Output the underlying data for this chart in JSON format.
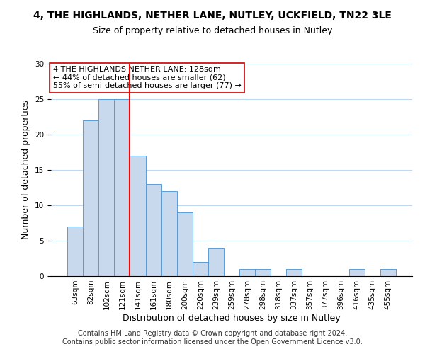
{
  "title": "4, THE HIGHLANDS, NETHER LANE, NUTLEY, UCKFIELD, TN22 3LE",
  "subtitle": "Size of property relative to detached houses in Nutley",
  "xlabel": "Distribution of detached houses by size in Nutley",
  "ylabel": "Number of detached properties",
  "categories": [
    "63sqm",
    "82sqm",
    "102sqm",
    "121sqm",
    "141sqm",
    "161sqm",
    "180sqm",
    "200sqm",
    "220sqm",
    "239sqm",
    "259sqm",
    "278sqm",
    "298sqm",
    "318sqm",
    "337sqm",
    "357sqm",
    "377sqm",
    "396sqm",
    "416sqm",
    "435sqm",
    "455sqm"
  ],
  "values": [
    7,
    22,
    25,
    25,
    17,
    13,
    12,
    9,
    2,
    4,
    0,
    1,
    1,
    0,
    1,
    0,
    0,
    0,
    1,
    0,
    1
  ],
  "bar_color": "#c8d9ed",
  "bar_edge_color": "#5b9bd5",
  "vline_x_index": 3,
  "vline_color": "red",
  "ylim": [
    0,
    30
  ],
  "annotation_text": "4 THE HIGHLANDS NETHER LANE: 128sqm\n← 44% of detached houses are smaller (62)\n55% of semi-detached houses are larger (77) →",
  "annotation_box_color": "white",
  "annotation_box_edge": "#cc0000",
  "footer_line1": "Contains HM Land Registry data © Crown copyright and database right 2024.",
  "footer_line2": "Contains public sector information licensed under the Open Government Licence v3.0.",
  "title_fontsize": 10,
  "subtitle_fontsize": 9,
  "axis_label_fontsize": 9,
  "tick_fontsize": 7.5,
  "annotation_fontsize": 8,
  "footer_fontsize": 7
}
